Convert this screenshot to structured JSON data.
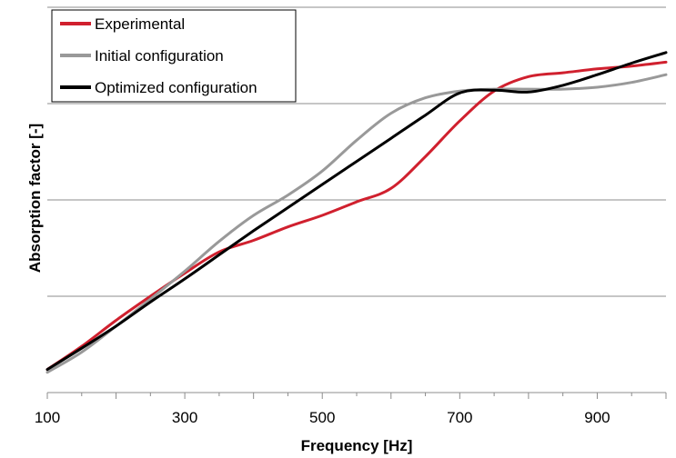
{
  "chart_data": {
    "type": "line",
    "title": "",
    "xlabel": "Frequency [Hz]",
    "ylabel": "Absorption factor [-]",
    "xlim": [
      100,
      1000
    ],
    "ylim": [
      0,
      4
    ],
    "xticks": [
      100,
      300,
      500,
      700,
      900
    ],
    "xtick_labels": [
      "100",
      "300",
      "500",
      "700",
      "900"
    ],
    "grid": "horizontal",
    "legend_position": "top-left",
    "series": [
      {
        "name": "Experimental",
        "color": "#d0202e",
        "x": [
          100,
          150,
          200,
          250,
          300,
          350,
          400,
          450,
          500,
          550,
          600,
          650,
          700,
          750,
          800,
          850,
          900,
          950,
          1000
        ],
        "y": [
          0.24,
          0.48,
          0.75,
          1.0,
          1.24,
          1.46,
          1.58,
          1.72,
          1.84,
          1.98,
          2.12,
          2.45,
          2.82,
          3.13,
          3.28,
          3.32,
          3.36,
          3.39,
          3.43
        ]
      },
      {
        "name": "Initial configuration",
        "color": "#999999",
        "x": [
          100,
          150,
          200,
          250,
          300,
          350,
          400,
          450,
          500,
          550,
          600,
          650,
          700,
          750,
          800,
          850,
          900,
          950,
          1000
        ],
        "y": [
          0.21,
          0.42,
          0.69,
          0.97,
          1.26,
          1.57,
          1.84,
          2.05,
          2.3,
          2.62,
          2.9,
          3.06,
          3.13,
          3.15,
          3.15,
          3.15,
          3.17,
          3.22,
          3.3
        ]
      },
      {
        "name": "Optimized configuration",
        "color": "#000000",
        "x": [
          100,
          150,
          200,
          250,
          300,
          350,
          400,
          450,
          500,
          550,
          600,
          650,
          700,
          750,
          800,
          850,
          900,
          950,
          1000
        ],
        "y": [
          0.24,
          0.46,
          0.69,
          0.94,
          1.18,
          1.43,
          1.68,
          1.92,
          2.16,
          2.4,
          2.64,
          2.88,
          3.11,
          3.14,
          3.12,
          3.19,
          3.3,
          3.42,
          3.53
        ]
      }
    ]
  }
}
